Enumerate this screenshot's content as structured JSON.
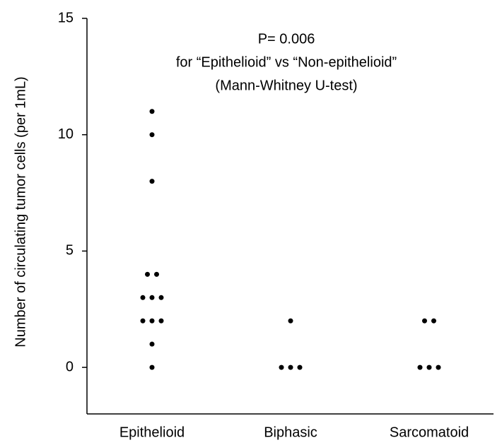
{
  "chart_data": {
    "type": "dot",
    "y_label": "Number of circulating tumor cells (per 1mL)",
    "annotations": [
      "P= 0.006",
      "for “Epithelioid” vs “Non-epithelioid”",
      "(Mann-Whitney U-test)"
    ],
    "categories": [
      "Epithelioid",
      "Biphasic",
      "Sarcomatoid"
    ],
    "values": [
      [
        11,
        10,
        8,
        4,
        4,
        3,
        3,
        3,
        2,
        2,
        2,
        1,
        0
      ],
      [
        2,
        0,
        0,
        0
      ],
      [
        2,
        2,
        0,
        0,
        0
      ]
    ],
    "color": "#000000",
    "ylim": [
      -2,
      15
    ],
    "yticks": [
      0,
      5,
      10,
      15
    ]
  }
}
